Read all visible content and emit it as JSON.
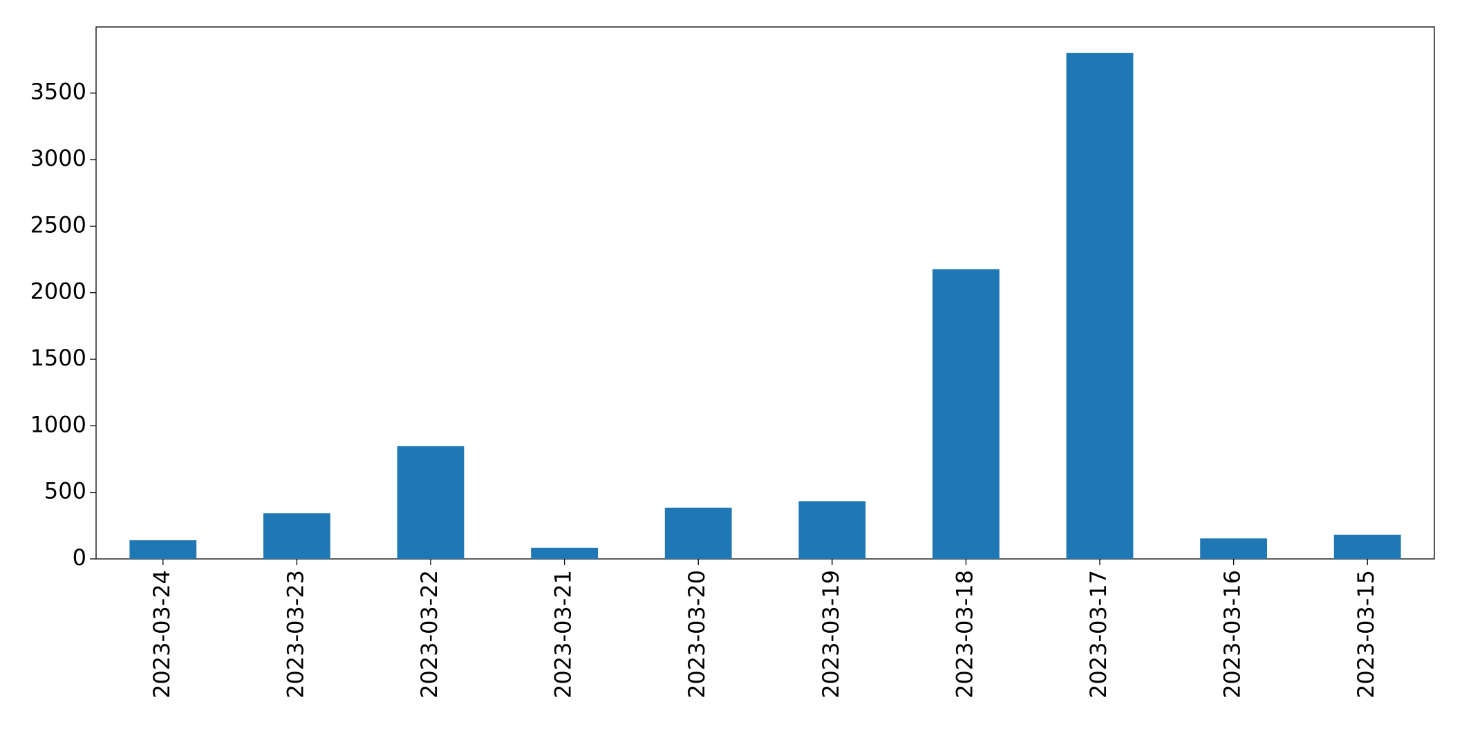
{
  "chart_data": {
    "type": "bar",
    "categories": [
      "2023-03-24",
      "2023-03-23",
      "2023-03-22",
      "2023-03-21",
      "2023-03-20",
      "2023-03-19",
      "2023-03-18",
      "2023-03-17",
      "2023-03-16",
      "2023-03-15"
    ],
    "values": [
      140,
      343,
      847,
      84,
      385,
      434,
      2177,
      3801,
      154,
      182
    ],
    "color": "#1f77b4",
    "ylim": [
      0,
      3997
    ],
    "yticks": [
      0,
      500,
      1000,
      1500,
      2000,
      2500,
      3000,
      3500
    ],
    "grid": false
  }
}
